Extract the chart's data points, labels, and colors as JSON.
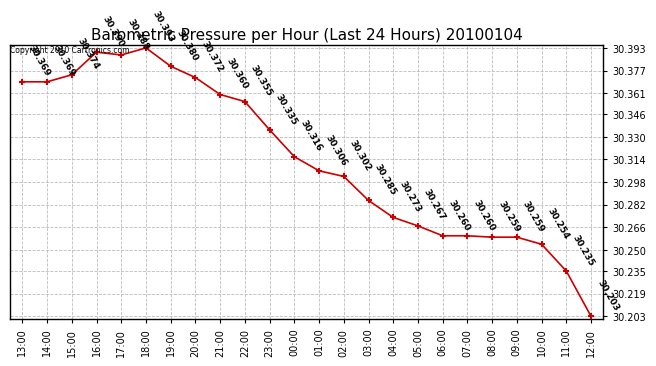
{
  "title": "Barometric Pressure per Hour (Last 24 Hours) 20100104",
  "copyright": "Copyright 2010 Cartronics.com",
  "x_labels": [
    "13:00",
    "14:00",
    "15:00",
    "16:00",
    "17:00",
    "18:00",
    "19:00",
    "20:00",
    "21:00",
    "22:00",
    "23:00",
    "00:00",
    "01:00",
    "02:00",
    "03:00",
    "04:00",
    "05:00",
    "06:00",
    "07:00",
    "08:00",
    "09:00",
    "10:00",
    "11:00",
    "12:00"
  ],
  "y_values": [
    30.369,
    30.369,
    30.374,
    30.39,
    30.388,
    30.393,
    30.38,
    30.372,
    30.36,
    30.355,
    30.335,
    30.316,
    30.306,
    30.302,
    30.285,
    30.273,
    30.267,
    30.26,
    30.26,
    30.259,
    30.259,
    30.254,
    30.235,
    30.203
  ],
  "line_color": "#cc0000",
  "marker_color": "#cc0000",
  "bg_color": "#ffffff",
  "grid_color": "#bbbbbb",
  "y_ticks": [
    30.203,
    30.219,
    30.235,
    30.25,
    30.266,
    30.282,
    30.298,
    30.314,
    30.33,
    30.346,
    30.361,
    30.377,
    30.393
  ],
  "title_fontsize": 11,
  "label_fontsize": 7,
  "annotation_fontsize": 6.5,
  "annotation_rotation": -60
}
